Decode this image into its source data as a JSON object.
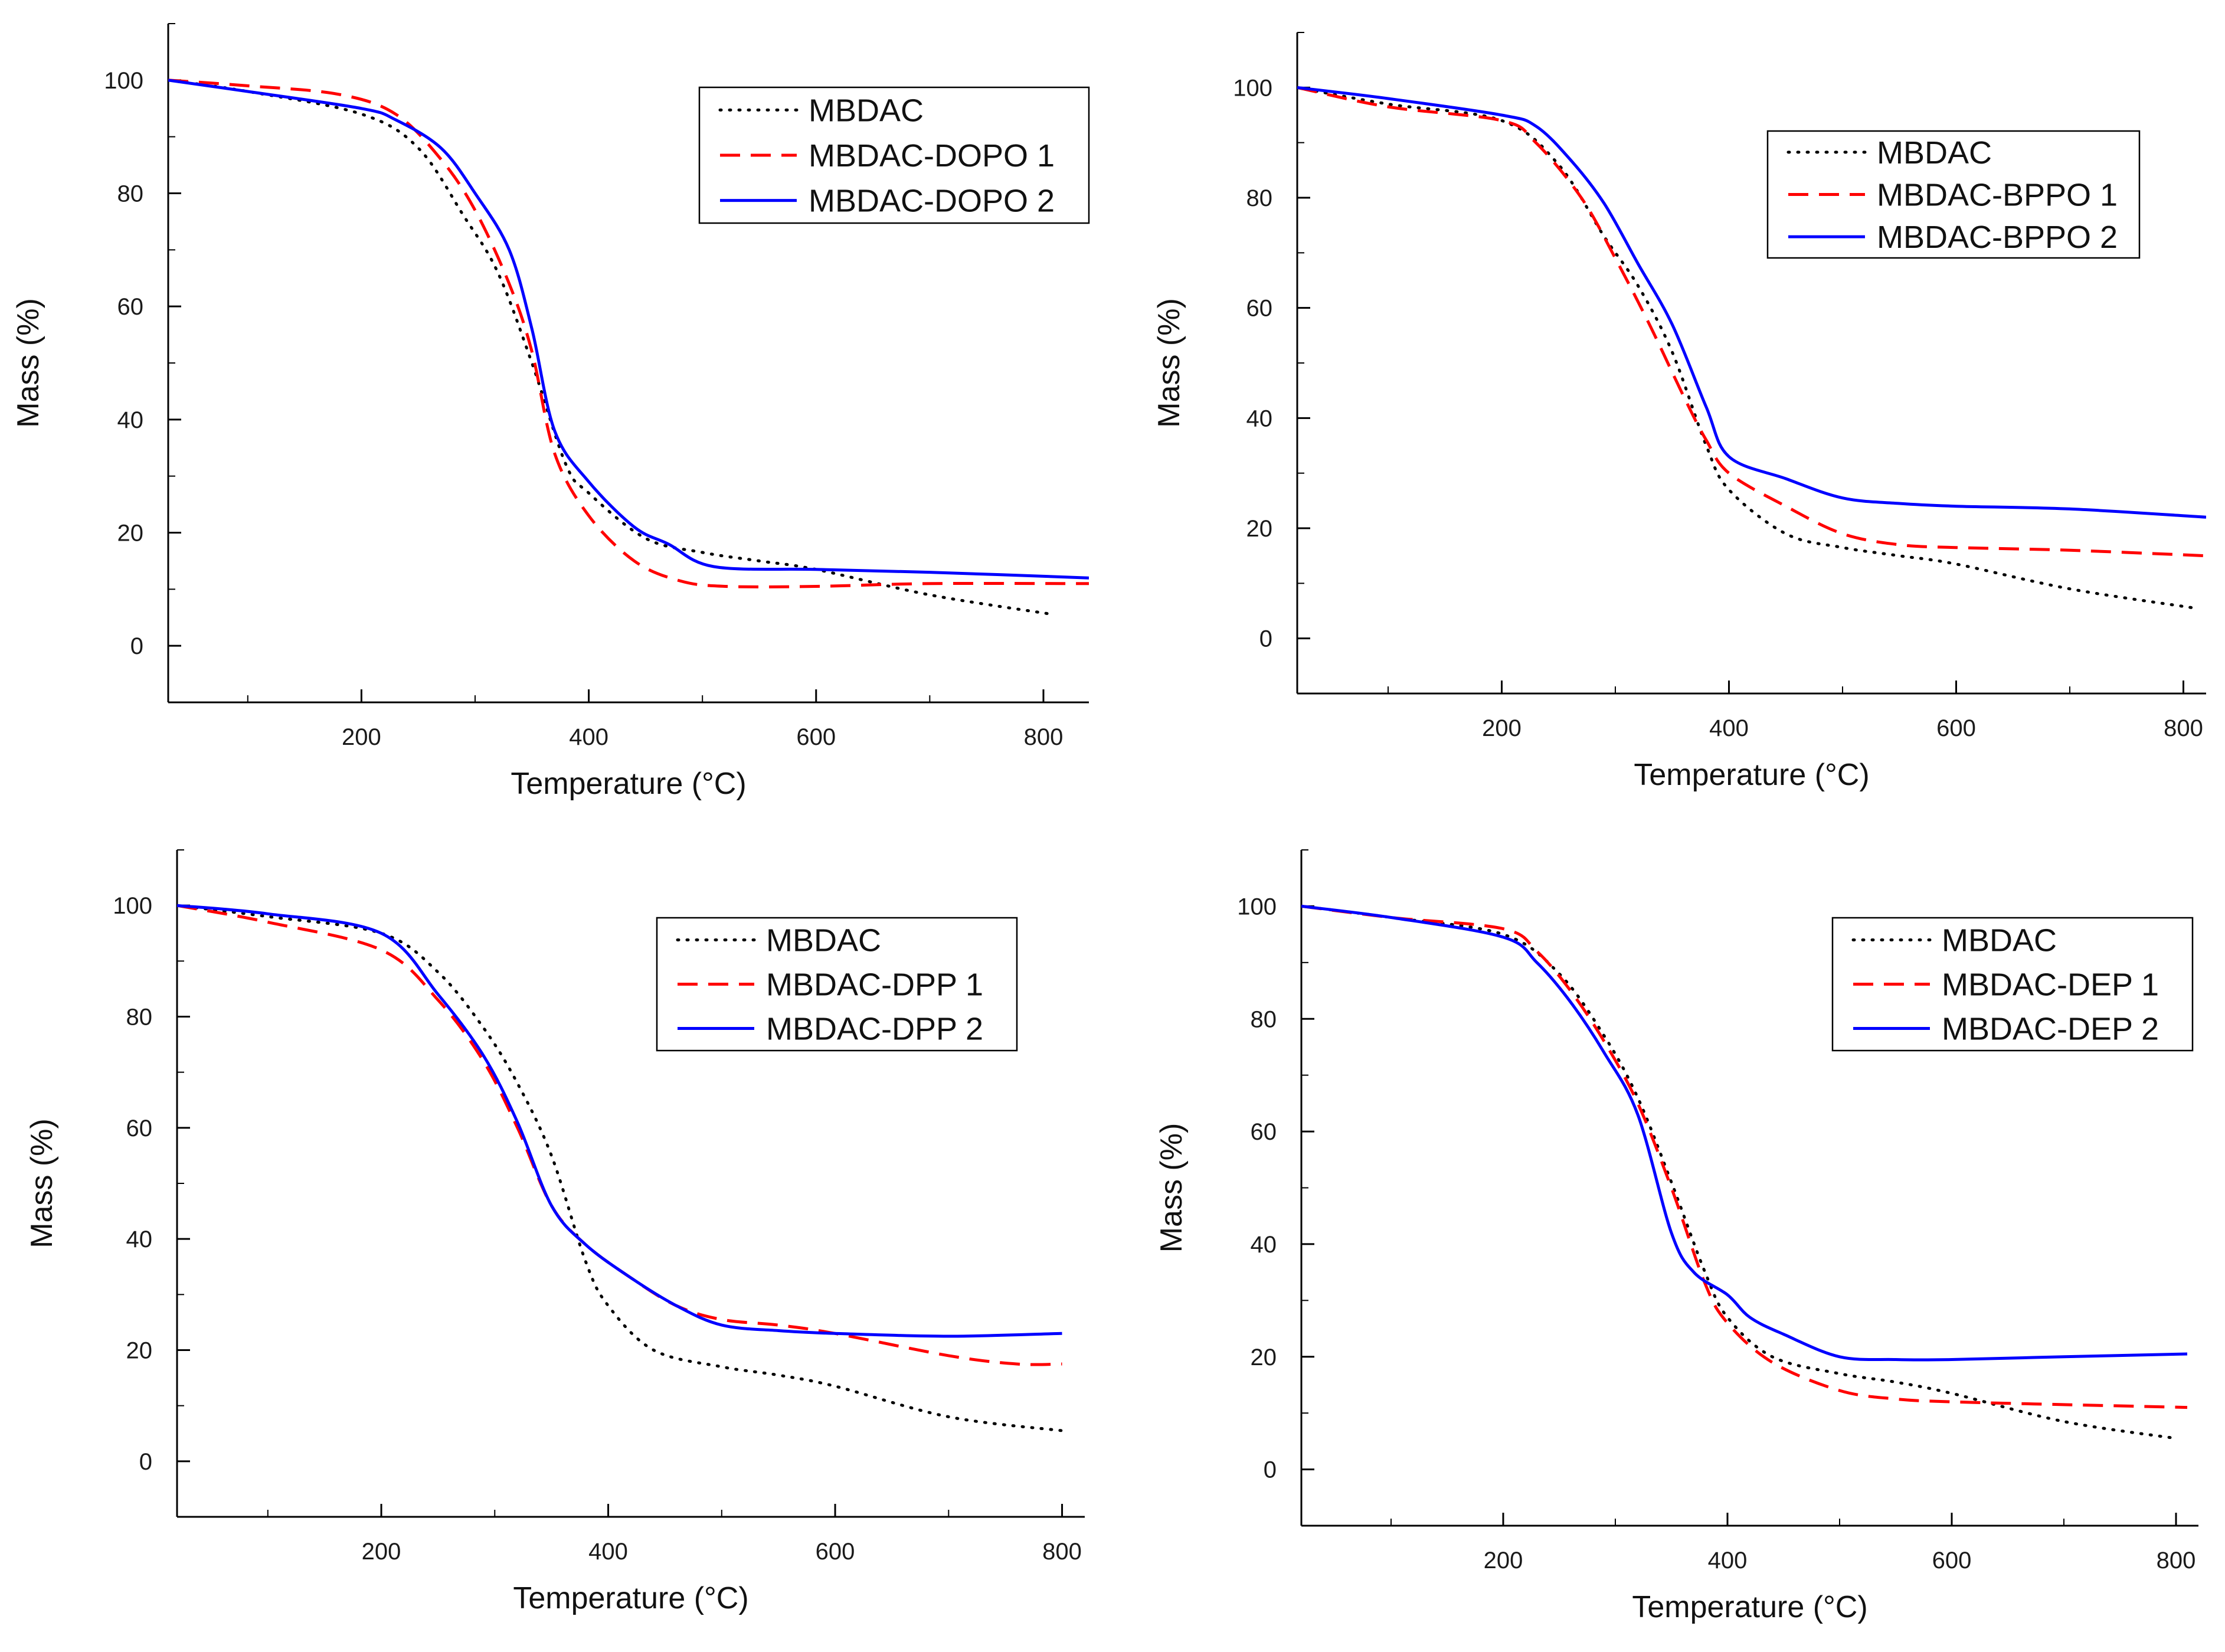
{
  "figure": {
    "panel_count": 4
  },
  "chart_data": [
    {
      "type": "line",
      "title": "",
      "xlabel": "Temperature (°C)",
      "ylabel": "Mass (%)",
      "xlim": [
        30,
        840
      ],
      "ylim": [
        -10,
        110
      ],
      "xticks": [
        200,
        400,
        600,
        800
      ],
      "xticks_minor": [
        100,
        300,
        500,
        700
      ],
      "yticks": [
        0,
        20,
        40,
        60,
        80,
        100
      ],
      "grid": false,
      "legend_position": "top-right",
      "series": [
        {
          "name": "MBDAC",
          "style": "dotted",
          "color": "#000000",
          "x": [
            30,
            100,
            200,
            250,
            290,
            320,
            350,
            380,
            400,
            450,
            500,
            550,
            600,
            700,
            810
          ],
          "y": [
            100,
            98,
            94,
            88,
            76,
            66,
            50,
            32,
            27,
            19,
            16.5,
            15,
            13.5,
            9,
            5.5
          ]
        },
        {
          "name": "MBDAC-DOPO 1",
          "style": "dashed",
          "color": "#ff0000",
          "x": [
            30,
            100,
            180,
            230,
            270,
            300,
            330,
            350,
            370,
            400,
            440,
            480,
            520,
            600,
            700,
            840
          ],
          "y": [
            100,
            99,
            97.5,
            94,
            86,
            77,
            64,
            52,
            34,
            23,
            15,
            11.5,
            10.5,
            10.5,
            11,
            11
          ]
        },
        {
          "name": "MBDAC-DOPO 2",
          "style": "solid",
          "color": "#0000ff",
          "x": [
            30,
            100,
            200,
            230,
            270,
            300,
            330,
            350,
            370,
            400,
            440,
            470,
            510,
            600,
            700,
            840
          ],
          "y": [
            100,
            98,
            95,
            93,
            88,
            80,
            70,
            56,
            38,
            29,
            21,
            18,
            14,
            13.5,
            13,
            12
          ]
        }
      ]
    },
    {
      "type": "line",
      "title": "",
      "xlabel": "Temperature (°C)",
      "ylabel": "Mass (%)",
      "xlim": [
        20,
        820
      ],
      "ylim": [
        -10,
        110
      ],
      "xticks": [
        200,
        400,
        600,
        800
      ],
      "xticks_minor": [
        100,
        300,
        500,
        700
      ],
      "yticks": [
        0,
        20,
        40,
        60,
        80,
        100
      ],
      "grid": false,
      "legend_position": "top-right",
      "series": [
        {
          "name": "MBDAC",
          "style": "dotted",
          "color": "#000000",
          "x": [
            20,
            100,
            200,
            250,
            290,
            320,
            350,
            380,
            400,
            450,
            500,
            550,
            600,
            700,
            810
          ],
          "y": [
            100,
            97,
            94,
            86,
            73,
            64,
            52,
            35,
            27,
            19,
            16.5,
            15,
            13.5,
            9,
            5.5
          ]
        },
        {
          "name": "MBDAC-BPPO 1",
          "style": "dashed",
          "color": "#ff0000",
          "x": [
            20,
            100,
            200,
            230,
            270,
            300,
            330,
            360,
            380,
            400,
            450,
            500,
            550,
            600,
            700,
            820
          ],
          "y": [
            100,
            96.5,
            94,
            90,
            80,
            69,
            57,
            44,
            36,
            30,
            24,
            19,
            17,
            16.5,
            16,
            15
          ]
        },
        {
          "name": "MBDAC-BPPO 2",
          "style": "solid",
          "color": "#0000ff",
          "x": [
            20,
            100,
            200,
            230,
            260,
            290,
            320,
            350,
            380,
            400,
            450,
            500,
            550,
            600,
            700,
            820
          ],
          "y": [
            100,
            98,
            95,
            93,
            87,
            79,
            68,
            57,
            42,
            33,
            29,
            25.5,
            24.5,
            24,
            23.5,
            22
          ]
        }
      ]
    },
    {
      "type": "line",
      "title": "",
      "xlabel": "Temperature (°C)",
      "ylabel": "Mass (%)",
      "xlim": [
        20,
        820
      ],
      "ylim": [
        -10,
        110
      ],
      "xticks": [
        200,
        400,
        600,
        800
      ],
      "xticks_minor": [
        100,
        300,
        500,
        700
      ],
      "yticks": [
        0,
        20,
        40,
        60,
        80,
        100
      ],
      "grid": false,
      "legend_position": "top-right",
      "series": [
        {
          "name": "MBDAC",
          "style": "dotted",
          "color": "#000000",
          "x": [
            20,
            100,
            200,
            250,
            290,
            320,
            350,
            380,
            400,
            440,
            500,
            550,
            600,
            700,
            800
          ],
          "y": [
            100,
            98,
            95,
            88,
            78,
            68,
            55,
            36,
            28,
            20,
            17,
            15.5,
            13.5,
            8,
            5.5
          ]
        },
        {
          "name": "MBDAC-DPP 1",
          "style": "dashed",
          "color": "#ff0000",
          "x": [
            20,
            100,
            200,
            250,
            290,
            320,
            350,
            380,
            420,
            460,
            500,
            550,
            600,
            700,
            760,
            800
          ],
          "y": [
            100,
            97,
            92,
            83,
            72,
            60,
            46,
            39,
            33,
            28,
            25.5,
            24.5,
            23,
            19,
            17.5,
            17.5
          ]
        },
        {
          "name": "MBDAC-DPP 2",
          "style": "solid",
          "color": "#0000ff",
          "x": [
            20,
            100,
            200,
            250,
            290,
            320,
            350,
            380,
            420,
            460,
            500,
            550,
            600,
            700,
            800
          ],
          "y": [
            100,
            98.5,
            95,
            84,
            73,
            61,
            46,
            39,
            33,
            28,
            24.5,
            23.5,
            23,
            22.5,
            23
          ]
        }
      ]
    },
    {
      "type": "line",
      "title": "",
      "xlabel": "Temperature (°C)",
      "ylabel": "Mass (%)",
      "xlim": [
        20,
        820
      ],
      "ylim": [
        -10,
        110
      ],
      "xticks": [
        200,
        400,
        600,
        800
      ],
      "xticks_minor": [
        100,
        300,
        500,
        700
      ],
      "yticks": [
        0,
        20,
        40,
        60,
        80,
        100
      ],
      "grid": false,
      "legend_position": "top-right",
      "series": [
        {
          "name": "MBDAC",
          "style": "dotted",
          "color": "#000000",
          "x": [
            20,
            100,
            200,
            250,
            290,
            320,
            350,
            380,
            400,
            440,
            500,
            550,
            600,
            700,
            800
          ],
          "y": [
            100,
            98,
            95,
            88,
            77,
            66,
            51,
            35,
            27,
            20,
            17,
            15.5,
            13.5,
            8.5,
            5.5
          ]
        },
        {
          "name": "MBDAC-DEP 1",
          "style": "dashed",
          "color": "#ff0000",
          "x": [
            20,
            100,
            200,
            230,
            260,
            290,
            320,
            350,
            380,
            400,
            440,
            500,
            550,
            600,
            700,
            810
          ],
          "y": [
            100,
            98,
            96,
            92,
            85,
            76,
            65,
            50,
            33,
            26,
            19,
            14,
            12.5,
            12,
            11.5,
            11
          ]
        },
        {
          "name": "MBDAC-DEP 2",
          "style": "solid",
          "color": "#0000ff",
          "x": [
            20,
            100,
            200,
            230,
            260,
            290,
            320,
            350,
            370,
            400,
            420,
            450,
            500,
            550,
            600,
            700,
            810
          ],
          "y": [
            100,
            98,
            94.5,
            90,
            83,
            74,
            63,
            42,
            35,
            31,
            27,
            24,
            20,
            19.5,
            19.5,
            20,
            20.5
          ]
        }
      ]
    }
  ]
}
